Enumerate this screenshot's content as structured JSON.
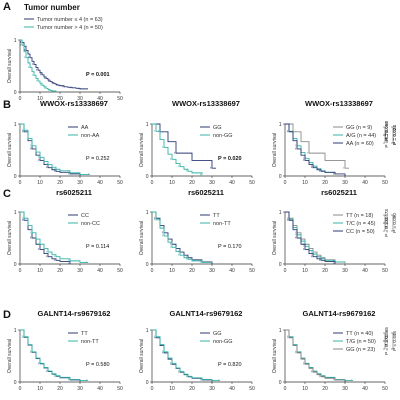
{
  "colors": {
    "navy": "#2c3a74",
    "teal": "#35b4a5",
    "gray": "#8a8a8a",
    "axis": "#333333",
    "bracket": "#444444"
  },
  "chart_data": [
    {
      "panel": "A",
      "title": "Tumor number",
      "type": "line",
      "ylabel": "Overall survival",
      "xticks": [
        "0",
        "10",
        "20",
        "30",
        "40",
        "50"
      ],
      "yticks": [
        "0",
        "1"
      ],
      "xlim": [
        0,
        50
      ],
      "ylim": [
        0,
        1
      ],
      "legend_position": "top-right",
      "series": [
        {
          "name": "Tumor number ≤ 4 (n = 63)",
          "color": "navy",
          "x": [
            0,
            1,
            2,
            3,
            4,
            5,
            6,
            7,
            8,
            9,
            10,
            11,
            12,
            13,
            14,
            15,
            16,
            17,
            18,
            19,
            20,
            22,
            24,
            26,
            28,
            30,
            34
          ],
          "y": [
            1,
            0.95,
            0.88,
            0.8,
            0.73,
            0.66,
            0.59,
            0.53,
            0.47,
            0.42,
            0.37,
            0.33,
            0.29,
            0.26,
            0.23,
            0.2,
            0.18,
            0.16,
            0.14,
            0.13,
            0.12,
            0.1,
            0.09,
            0.08,
            0.07,
            0.06,
            0.06
          ]
        },
        {
          "name": "Tumor number > 4 (n = 50)",
          "color": "teal",
          "x": [
            0,
            1,
            2,
            3,
            4,
            5,
            6,
            7,
            8,
            9,
            10,
            11,
            12,
            13,
            14,
            15,
            16,
            18
          ],
          "y": [
            1,
            0.9,
            0.78,
            0.66,
            0.56,
            0.47,
            0.39,
            0.32,
            0.26,
            0.21,
            0.17,
            0.13,
            0.1,
            0.07,
            0.05,
            0.03,
            0.02,
            0
          ]
        }
      ],
      "pvalue": "P = 0.001",
      "p_bold": true
    },
    {
      "panel": "B",
      "title": "WWOX-rs13338697",
      "type": "line",
      "ylabel": "Overall survival",
      "xticks": [
        "0",
        "10",
        "20",
        "30",
        "40",
        "50"
      ],
      "yticks": [
        "0",
        "1"
      ],
      "xlim": [
        0,
        50
      ],
      "ylim": [
        0,
        1
      ],
      "legend_position": "top-right",
      "series": [
        {
          "name": "AA",
          "color": "navy",
          "x": [
            0,
            2,
            4,
            6,
            8,
            10,
            12,
            14,
            16,
            18,
            20,
            25,
            30
          ],
          "y": [
            1,
            0.85,
            0.68,
            0.52,
            0.4,
            0.3,
            0.22,
            0.16,
            0.12,
            0.09,
            0.07,
            0.04,
            0
          ]
        },
        {
          "name": "non-AA",
          "color": "teal",
          "x": [
            0,
            2,
            4,
            6,
            8,
            10,
            12,
            14,
            16,
            18,
            20,
            25,
            30,
            35
          ],
          "y": [
            1,
            0.88,
            0.72,
            0.58,
            0.46,
            0.36,
            0.28,
            0.22,
            0.17,
            0.13,
            0.1,
            0.06,
            0.03,
            0.03
          ]
        }
      ],
      "pvalue": "P = 0.252",
      "p_bold": false
    },
    {
      "panel": "",
      "title": "WWOX-rs13338697",
      "type": "line",
      "ylabel": "Overall survival",
      "xticks": [
        "0",
        "10",
        "20",
        "30",
        "40",
        "50"
      ],
      "yticks": [
        "0",
        "1"
      ],
      "xlim": [
        0,
        50
      ],
      "ylim": [
        0,
        1
      ],
      "legend_position": "top-right",
      "series": [
        {
          "name": "GG",
          "color": "navy",
          "x": [
            0,
            4,
            8,
            12,
            20,
            30,
            32
          ],
          "y": [
            1,
            0.85,
            0.66,
            0.44,
            0.3,
            0.15,
            0.15
          ]
        },
        {
          "name": "non-GG",
          "color": "teal",
          "x": [
            0,
            2,
            4,
            6,
            8,
            10,
            12,
            14,
            16,
            18,
            20,
            25
          ],
          "y": [
            1,
            0.86,
            0.7,
            0.55,
            0.42,
            0.32,
            0.24,
            0.18,
            0.13,
            0.09,
            0.06,
            0.02
          ]
        }
      ],
      "pvalue": "P = 0.020",
      "p_bold": true
    },
    {
      "panel": "",
      "title": "WWOX-rs13338697",
      "type": "line",
      "ylabel": "Overall survival",
      "xticks": [
        "0",
        "10",
        "20",
        "30",
        "40",
        "50"
      ],
      "yticks": [
        "0",
        "1"
      ],
      "xlim": [
        0,
        50
      ],
      "ylim": [
        0,
        1
      ],
      "legend_position": "top-right",
      "series": [
        {
          "name": "GG (n = 9)",
          "color": "gray",
          "x": [
            0,
            4,
            8,
            12,
            20,
            30,
            32
          ],
          "y": [
            1,
            0.85,
            0.66,
            0.44,
            0.3,
            0.15,
            0.15
          ]
        },
        {
          "name": "A/G (n = 44)",
          "color": "teal",
          "x": [
            0,
            2,
            4,
            6,
            8,
            10,
            12,
            14,
            16,
            18,
            20,
            25
          ],
          "y": [
            1,
            0.86,
            0.72,
            0.58,
            0.45,
            0.34,
            0.26,
            0.19,
            0.14,
            0.1,
            0.07,
            0.03
          ]
        },
        {
          "name": "AA (n = 60)",
          "color": "navy",
          "x": [
            0,
            2,
            4,
            6,
            8,
            10,
            12,
            14,
            16,
            18,
            20,
            25,
            30
          ],
          "y": [
            1,
            0.85,
            0.68,
            0.52,
            0.4,
            0.3,
            0.22,
            0.16,
            0.12,
            0.09,
            0.07,
            0.04,
            0
          ]
        }
      ],
      "brackets": [
        {
          "from": "GG (n = 9)",
          "to": "A/G (n = 44)",
          "label": "P = 0.058",
          "bold": true
        },
        {
          "from": "A/G (n = 44)",
          "to": "AA (n = 60)",
          "label": "P = 0.72",
          "bold": false
        },
        {
          "from": "GG (n = 9)",
          "to": "AA (n = 60)",
          "label": "P = 0.024",
          "bold": true
        }
      ]
    },
    {
      "panel": "C",
      "title": "rs6025211",
      "type": "line",
      "ylabel": "Overall survival",
      "xticks": [
        "0",
        "10",
        "20",
        "30",
        "40",
        "50"
      ],
      "yticks": [
        "0",
        "1"
      ],
      "xlim": [
        0,
        50
      ],
      "ylim": [
        0,
        1
      ],
      "legend_position": "top-right",
      "series": [
        {
          "name": "CC",
          "color": "navy",
          "x": [
            0,
            2,
            4,
            6,
            8,
            10,
            12,
            14,
            16,
            18,
            20,
            25
          ],
          "y": [
            1,
            0.84,
            0.66,
            0.5,
            0.38,
            0.28,
            0.2,
            0.14,
            0.1,
            0.07,
            0.05,
            0
          ]
        },
        {
          "name": "non-CC",
          "color": "teal",
          "x": [
            0,
            2,
            4,
            6,
            8,
            10,
            12,
            14,
            16,
            18,
            20,
            25,
            30,
            34
          ],
          "y": [
            1,
            0.88,
            0.74,
            0.6,
            0.48,
            0.38,
            0.3,
            0.23,
            0.18,
            0.14,
            0.1,
            0.06,
            0.03,
            0.03
          ]
        }
      ],
      "pvalue": "P = 0.114",
      "p_bold": false
    },
    {
      "panel": "",
      "title": "rs6025211",
      "type": "line",
      "ylabel": "Overall survival",
      "xticks": [
        "0",
        "10",
        "20",
        "30",
        "40",
        "50"
      ],
      "yticks": [
        "0",
        "1"
      ],
      "xlim": [
        0,
        50
      ],
      "ylim": [
        0,
        1
      ],
      "legend_position": "top-right",
      "series": [
        {
          "name": "TT",
          "color": "navy",
          "x": [
            0,
            2,
            4,
            6,
            8,
            10,
            12,
            14,
            16,
            18,
            20,
            25,
            30
          ],
          "y": [
            1,
            0.88,
            0.74,
            0.6,
            0.48,
            0.38,
            0.3,
            0.23,
            0.17,
            0.12,
            0.08,
            0.04,
            0
          ]
        },
        {
          "name": "non-TT",
          "color": "teal",
          "x": [
            0,
            2,
            4,
            6,
            8,
            10,
            12,
            14,
            16,
            18,
            20,
            25,
            30
          ],
          "y": [
            1,
            0.85,
            0.69,
            0.54,
            0.42,
            0.32,
            0.24,
            0.17,
            0.12,
            0.09,
            0.06,
            0.03,
            0.03
          ]
        }
      ],
      "pvalue": "P = 0.170",
      "p_bold": false
    },
    {
      "panel": "",
      "title": "rs6025211",
      "type": "line",
      "ylabel": "Overall survival",
      "xticks": [
        "0",
        "10",
        "20",
        "30",
        "40",
        "50"
      ],
      "yticks": [
        "0",
        "1"
      ],
      "xlim": [
        0,
        50
      ],
      "ylim": [
        0,
        1
      ],
      "legend_position": "top-right",
      "series": [
        {
          "name": "TT (n = 18)",
          "color": "gray",
          "x": [
            0,
            2,
            4,
            6,
            8,
            10,
            12,
            14,
            16,
            18,
            20,
            25,
            30
          ],
          "y": [
            1,
            0.88,
            0.74,
            0.6,
            0.48,
            0.38,
            0.3,
            0.23,
            0.17,
            0.12,
            0.08,
            0.04,
            0
          ]
        },
        {
          "name": "T/C (n = 45)",
          "color": "teal",
          "x": [
            0,
            2,
            4,
            6,
            8,
            10,
            12,
            14,
            16,
            18,
            20,
            25,
            30
          ],
          "y": [
            1,
            0.86,
            0.7,
            0.56,
            0.44,
            0.34,
            0.26,
            0.19,
            0.14,
            0.1,
            0.07,
            0.04,
            0.04
          ]
        },
        {
          "name": "CC (n = 50)",
          "color": "navy",
          "x": [
            0,
            2,
            4,
            6,
            8,
            10,
            12,
            14,
            16,
            18,
            20,
            25
          ],
          "y": [
            1,
            0.84,
            0.66,
            0.5,
            0.38,
            0.28,
            0.2,
            0.14,
            0.1,
            0.07,
            0.05,
            0
          ]
        }
      ],
      "brackets": [
        {
          "from": "TT (n = 18)",
          "to": "T/C (n = 45)",
          "label": "P = 0.473",
          "bold": false
        },
        {
          "from": "T/C (n = 45)",
          "to": "CC (n = 50)",
          "label": "P = 0.234",
          "bold": false
        },
        {
          "from": "TT (n = 18)",
          "to": "CC (n = 50)",
          "label": "P = 0.090",
          "bold": false
        }
      ]
    },
    {
      "panel": "D",
      "title": "GALNT14-rs9679162",
      "type": "line",
      "ylabel": "Overall survival",
      "xticks": [
        "0",
        "10",
        "20",
        "30",
        "40",
        "50"
      ],
      "yticks": [
        "0",
        "1"
      ],
      "xlim": [
        0,
        50
      ],
      "ylim": [
        0,
        1
      ],
      "legend_position": "top-right",
      "series": [
        {
          "name": "TT",
          "color": "navy",
          "x": [
            0,
            2,
            4,
            6,
            8,
            10,
            12,
            14,
            16,
            18,
            20,
            25,
            30
          ],
          "y": [
            1,
            0.86,
            0.71,
            0.57,
            0.45,
            0.35,
            0.27,
            0.2,
            0.15,
            0.11,
            0.08,
            0.04,
            0
          ]
        },
        {
          "name": "non-TT",
          "color": "teal",
          "x": [
            0,
            2,
            4,
            6,
            8,
            10,
            12,
            14,
            16,
            18,
            20,
            25,
            30,
            34
          ],
          "y": [
            1,
            0.87,
            0.72,
            0.58,
            0.46,
            0.36,
            0.28,
            0.21,
            0.16,
            0.12,
            0.09,
            0.05,
            0.03,
            0.03
          ]
        }
      ],
      "pvalue": "P = 0.580",
      "p_bold": false
    },
    {
      "panel": "",
      "title": "GALNT14-rs9679162",
      "type": "line",
      "ylabel": "Overall survival",
      "xticks": [
        "0",
        "10",
        "20",
        "30",
        "40",
        "50"
      ],
      "yticks": [
        "0",
        "1"
      ],
      "xlim": [
        0,
        50
      ],
      "ylim": [
        0,
        1
      ],
      "legend_position": "top-right",
      "series": [
        {
          "name": "GG",
          "color": "navy",
          "x": [
            0,
            2,
            4,
            6,
            8,
            10,
            12,
            14,
            16,
            18,
            20,
            25,
            30
          ],
          "y": [
            1,
            0.85,
            0.7,
            0.56,
            0.44,
            0.34,
            0.26,
            0.19,
            0.14,
            0.1,
            0.07,
            0.04,
            0
          ]
        },
        {
          "name": "non-GG",
          "color": "teal",
          "x": [
            0,
            2,
            4,
            6,
            8,
            10,
            12,
            14,
            16,
            18,
            20,
            25,
            30,
            34
          ],
          "y": [
            1,
            0.87,
            0.72,
            0.58,
            0.46,
            0.36,
            0.27,
            0.2,
            0.15,
            0.11,
            0.08,
            0.05,
            0.03,
            0.03
          ]
        }
      ],
      "pvalue": "P = 0.820",
      "p_bold": false
    },
    {
      "panel": "",
      "title": "GALNT14-rs9679162",
      "type": "line",
      "ylabel": "Overall survival",
      "xticks": [
        "0",
        "10",
        "20",
        "30",
        "40",
        "50"
      ],
      "yticks": [
        "0",
        "1"
      ],
      "xlim": [
        0,
        50
      ],
      "ylim": [
        0,
        1
      ],
      "legend_position": "top-right",
      "series": [
        {
          "name": "TT (n = 40)",
          "color": "navy",
          "x": [
            0,
            2,
            4,
            6,
            8,
            10,
            12,
            14,
            16,
            18,
            20,
            25,
            30
          ],
          "y": [
            1,
            0.86,
            0.71,
            0.57,
            0.45,
            0.35,
            0.27,
            0.2,
            0.15,
            0.11,
            0.08,
            0.04,
            0
          ]
        },
        {
          "name": "T/G (n = 50)",
          "color": "teal",
          "x": [
            0,
            2,
            4,
            6,
            8,
            10,
            12,
            14,
            16,
            18,
            20,
            25,
            30,
            34
          ],
          "y": [
            1,
            0.87,
            0.72,
            0.58,
            0.46,
            0.36,
            0.28,
            0.21,
            0.16,
            0.12,
            0.09,
            0.05,
            0.03,
            0.03
          ]
        },
        {
          "name": "GG (n = 23)",
          "color": "gray",
          "x": [
            0,
            2,
            4,
            6,
            8,
            10,
            12,
            14,
            16,
            18,
            20,
            25,
            30
          ],
          "y": [
            1,
            0.85,
            0.7,
            0.56,
            0.44,
            0.34,
            0.26,
            0.19,
            0.14,
            0.1,
            0.07,
            0.04,
            0.04
          ]
        }
      ],
      "brackets": [
        {
          "from": "TT (n = 40)",
          "to": "T/G (n = 50)",
          "label": "P = 0.865",
          "bold": false
        },
        {
          "from": "T/G (n = 50)",
          "to": "GG (n = 23)",
          "label": "P = 0.373",
          "bold": false
        },
        {
          "from": "TT (n = 40)",
          "to": "GG (n = 23)",
          "label": "P = 0.448",
          "bold": false
        }
      ]
    }
  ]
}
